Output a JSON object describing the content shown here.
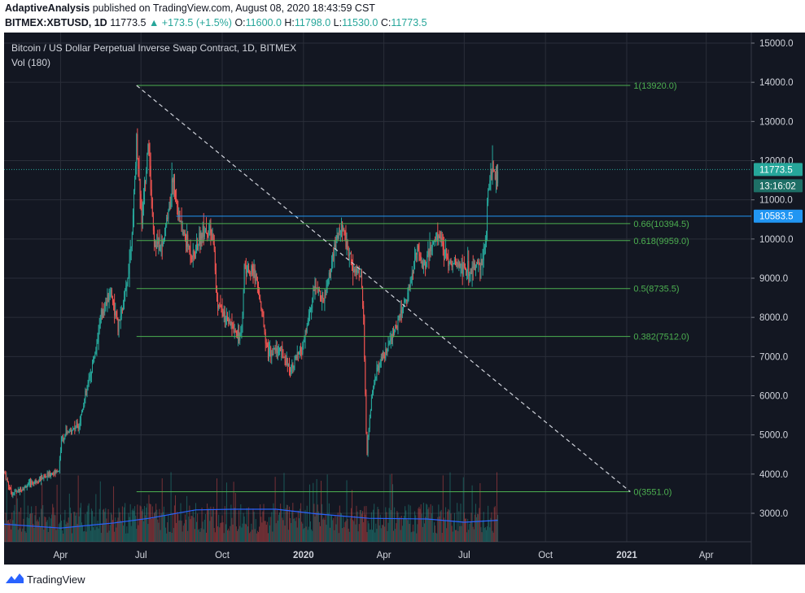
{
  "header": {
    "author": "AdaptiveAnalysis",
    "published_text": "published on TradingView.com, August 08, 2020 18:43:59 CST",
    "symbol": "BITMEX:XBTUSD, 1D",
    "last": "11773.5",
    "change": "▲ +173.5 (+1.5%)",
    "o_label": "O:",
    "o": "11600.0",
    "h_label": "H:",
    "h": "11798.0",
    "l_label": "L:",
    "l": "11530.0",
    "c_label": "C:",
    "c": "11773.5"
  },
  "legend": {
    "title": "Bitcoin / US Dollar Perpetual Inverse Swap Contract, 1D, BITMEX",
    "volume": "Vol (180)"
  },
  "footer": {
    "brand": "TradingView"
  },
  "colors": {
    "background": "#131722",
    "grid": "#2a2e39",
    "up": "#26a69a",
    "down": "#ef5350",
    "fib": "#4caf50",
    "hline": "#2196f3",
    "volume_ma": "#2962ff",
    "price_line": "#26a69a"
  },
  "chart_data": {
    "type": "candlestick",
    "y_axis_ticks": [
      "15000.0",
      "14000.0",
      "13000.0",
      "12000.0",
      "11000.0",
      "10000.0",
      "9000.0",
      "8000.0",
      "7000.0",
      "6000.0",
      "5000.0",
      "4000.0",
      "3000.0"
    ],
    "y_tick_values": [
      15000,
      14000,
      13000,
      12000,
      11000,
      10000,
      9000,
      8000,
      7000,
      6000,
      5000,
      4000,
      3000
    ],
    "ylim": [
      2300,
      15300
    ],
    "x_axis_ticks": [
      "Apr",
      "Jul",
      "Oct",
      "2020",
      "Apr",
      "Jul",
      "Oct",
      "2021",
      "Apr"
    ],
    "x_tick_dates": [
      "2019-04-01",
      "2019-07-01",
      "2019-10-01",
      "2020-01-01",
      "2020-04-01",
      "2020-07-01",
      "2020-10-01",
      "2021-01-01",
      "2021-04-01"
    ],
    "xlim": [
      "2019-01-27",
      "2021-05-22"
    ],
    "price_key_points": [
      [
        "2019-01-27",
        4050
      ],
      [
        "2019-02-05",
        3500
      ],
      [
        "2019-02-14",
        3600
      ],
      [
        "2019-03-01",
        3800
      ],
      [
        "2019-03-30",
        4100
      ],
      [
        "2019-04-02",
        4900
      ],
      [
        "2019-04-22",
        5300
      ],
      [
        "2019-05-11",
        7200
      ],
      [
        "2019-05-16",
        8000
      ],
      [
        "2019-05-28",
        8700
      ],
      [
        "2019-06-05",
        7700
      ],
      [
        "2019-06-15",
        8800
      ],
      [
        "2019-06-22",
        10500
      ],
      [
        "2019-06-26",
        12500
      ],
      [
        "2019-07-02",
        10500
      ],
      [
        "2019-07-09",
        12500
      ],
      [
        "2019-07-16",
        9900
      ],
      [
        "2019-07-25",
        9800
      ],
      [
        "2019-08-03",
        11000
      ],
      [
        "2019-08-06",
        11600
      ],
      [
        "2019-08-15",
        10300
      ],
      [
        "2019-08-29",
        9500
      ],
      [
        "2019-09-10",
        10300
      ],
      [
        "2019-09-21",
        10000
      ],
      [
        "2019-09-25",
        8400
      ],
      [
        "2019-10-06",
        7900
      ],
      [
        "2019-10-23",
        7500
      ],
      [
        "2019-10-26",
        9300
      ],
      [
        "2019-11-08",
        9100
      ],
      [
        "2019-11-22",
        7100
      ],
      [
        "2019-12-05",
        7200
      ],
      [
        "2019-12-17",
        6700
      ],
      [
        "2019-12-31",
        7200
      ],
      [
        "2020-01-14",
        8800
      ],
      [
        "2020-01-24",
        8400
      ],
      [
        "2020-02-09",
        10100
      ],
      [
        "2020-02-14",
        10300
      ],
      [
        "2020-02-25",
        9300
      ],
      [
        "2020-03-06",
        9100
      ],
      [
        "2020-03-09",
        7900
      ],
      [
        "2020-03-12",
        5000
      ],
      [
        "2020-03-13",
        4600
      ],
      [
        "2020-03-19",
        6200
      ],
      [
        "2020-03-25",
        6700
      ],
      [
        "2020-04-06",
        7200
      ],
      [
        "2020-04-29",
        8700
      ],
      [
        "2020-05-09",
        9800
      ],
      [
        "2020-05-15",
        9300
      ],
      [
        "2020-06-01",
        10100
      ],
      [
        "2020-06-15",
        9400
      ],
      [
        "2020-07-09",
        9200
      ],
      [
        "2020-07-21",
        9400
      ],
      [
        "2020-07-26",
        10000
      ],
      [
        "2020-07-27",
        11000
      ],
      [
        "2020-08-01",
        11800
      ],
      [
        "2020-08-07",
        11600
      ],
      [
        "2020-08-08",
        11773.5
      ]
    ],
    "fib_levels": [
      {
        "label": "1(13920.0)",
        "value": 13920.0
      },
      {
        "label": "0.66(10394.5)",
        "value": 10394.5
      },
      {
        "label": "0.618(9959.0)",
        "value": 9959.0
      },
      {
        "label": "0.5(8735.5)",
        "value": 8735.5
      },
      {
        "label": "0.382(7512.0)",
        "value": 7512.0
      },
      {
        "label": "0(3551.0)",
        "value": 3551.0
      }
    ],
    "trendline": {
      "start": [
        "2019-06-26",
        13920
      ],
      "end": [
        "2021-01-05",
        3551
      ]
    },
    "horizontal_line": {
      "value": 10583.5,
      "label": "10583.5",
      "start": "2019-08-10"
    },
    "last_price": {
      "value": 11773.5,
      "label": "11773.5",
      "countdown": "13:16:02"
    },
    "volume_ma_points": [
      [
        "2019-01-27",
        0.27
      ],
      [
        "2019-04-01",
        0.21
      ],
      [
        "2019-06-01",
        0.29
      ],
      [
        "2019-07-10",
        0.36
      ],
      [
        "2019-09-01",
        0.49
      ],
      [
        "2019-10-15",
        0.5
      ],
      [
        "2019-12-01",
        0.5
      ],
      [
        "2020-01-15",
        0.43
      ],
      [
        "2020-03-15",
        0.36
      ],
      [
        "2020-05-20",
        0.35
      ],
      [
        "2020-07-01",
        0.3
      ],
      [
        "2020-08-08",
        0.33
      ]
    ]
  }
}
